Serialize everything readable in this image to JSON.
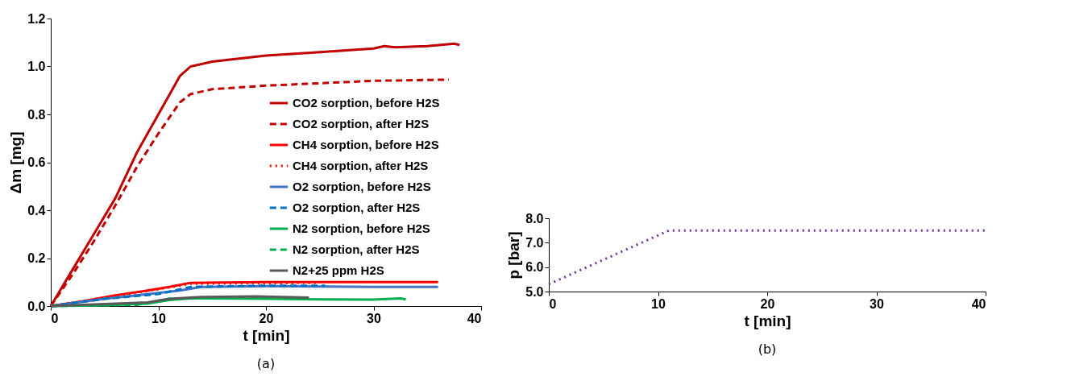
{
  "chart_data": [
    {
      "type": "line",
      "xlabel": "t [min]",
      "ylabel": "Δm [mg]",
      "annotations": [
        "(a)"
      ],
      "legend": "right",
      "grid": false,
      "xlim": [
        0,
        40
      ],
      "xticks": [
        0,
        10,
        20,
        30,
        40
      ],
      "ylim": [
        0,
        1.2
      ],
      "yticks": [
        {
          "value": 0,
          "label": "0.0"
        },
        0.2,
        0.4,
        0.6,
        0.8,
        {
          "value": 1,
          "label": "1.0"
        },
        1.2
      ],
      "series": [
        {
          "name": "CO2 sorption, before H2S",
          "color": "#c00000",
          "line_style": "solid",
          "x": [
            0,
            2,
            4,
            6,
            8,
            10,
            12,
            13,
            15,
            20,
            25,
            30,
            31,
            32,
            35,
            37.5,
            38
          ],
          "values": [
            0,
            0.15,
            0.3,
            0.45,
            0.64,
            0.8,
            0.96,
            1.0,
            1.02,
            1.045,
            1.06,
            1.075,
            1.085,
            1.08,
            1.085,
            1.095,
            1.09
          ]
        },
        {
          "name": "CO2 sorption, after H2S",
          "color": "#c00000",
          "line_style": "dashed",
          "x": [
            0,
            2,
            4,
            6,
            8,
            10,
            12,
            13,
            15,
            20,
            25,
            30,
            37
          ],
          "values": [
            0,
            0.13,
            0.27,
            0.42,
            0.58,
            0.72,
            0.85,
            0.885,
            0.905,
            0.92,
            0.93,
            0.94,
            0.945
          ]
        },
        {
          "name": "CH4 sorption, before H2S",
          "color": "#ff0000",
          "line_style": "solid",
          "x": [
            0,
            3,
            6,
            9,
            11,
            13,
            20,
            36
          ],
          "values": [
            0,
            0.02,
            0.045,
            0.065,
            0.08,
            0.097,
            0.1,
            0.1
          ]
        },
        {
          "name": "CH4 sorption, after H2S",
          "color": "#ff0000",
          "line_style": "dotted",
          "x": [
            0,
            5,
            10,
            13,
            25
          ],
          "values": [
            0,
            0.035,
            0.07,
            0.093,
            0.097
          ]
        },
        {
          "name": "O2 sorption, before H2S",
          "color": "#4472c4",
          "line_style": "solid",
          "x": [
            0,
            5,
            10,
            12,
            14,
            20,
            30,
            36
          ],
          "values": [
            0,
            0.03,
            0.055,
            0.065,
            0.08,
            0.083,
            0.08,
            0.08
          ]
        },
        {
          "name": "O2 sorption, after H2S",
          "color": "#0070c0",
          "line_style": "dashed",
          "x": [
            0,
            5,
            10,
            13,
            20,
            25.5
          ],
          "values": [
            0,
            0.03,
            0.05,
            0.08,
            0.085,
            0.085
          ]
        },
        {
          "name": "N2 sorption, before H2S",
          "color": "#00b050",
          "line_style": "solid",
          "x": [
            0,
            5,
            9,
            11,
            13,
            20,
            25,
            30,
            32.5,
            33
          ],
          "values": [
            0,
            0.003,
            0.01,
            0.025,
            0.032,
            0.03,
            0.028,
            0.027,
            0.032,
            0.028
          ]
        },
        {
          "name": "N2 sorption, after H2S",
          "color": "#00b050",
          "line_style": "dashed",
          "x": [
            0,
            8,
            11,
            15,
            20
          ],
          "values": [
            0,
            0.005,
            0.03,
            0.035,
            0.035
          ]
        },
        {
          "name": "N2+25 ppm H2S",
          "color": "#595959",
          "line_style": "solid",
          "x": [
            0,
            5,
            9,
            11,
            14,
            19,
            24
          ],
          "values": [
            0,
            0.008,
            0.015,
            0.03,
            0.038,
            0.04,
            0.035
          ]
        }
      ]
    },
    {
      "type": "line",
      "xlabel": "t [min]",
      "ylabel": "p [bar]",
      "annotations": [
        "(b)"
      ],
      "legend": false,
      "grid": false,
      "xlim": [
        0,
        40
      ],
      "xticks": [
        0,
        10,
        20,
        30,
        40
      ],
      "ylim": [
        5,
        8
      ],
      "yticks": [
        {
          "value": 5,
          "label": "5.0"
        },
        {
          "value": 6,
          "label": "6.0"
        },
        {
          "value": 7,
          "label": "7.0"
        },
        {
          "value": 8,
          "label": "8.0"
        }
      ],
      "series": [
        {
          "color": "#7030a0",
          "line_style": "dotted",
          "x": [
            0,
            11,
            40
          ],
          "values": [
            5.3,
            7.5,
            7.5
          ]
        }
      ]
    }
  ]
}
